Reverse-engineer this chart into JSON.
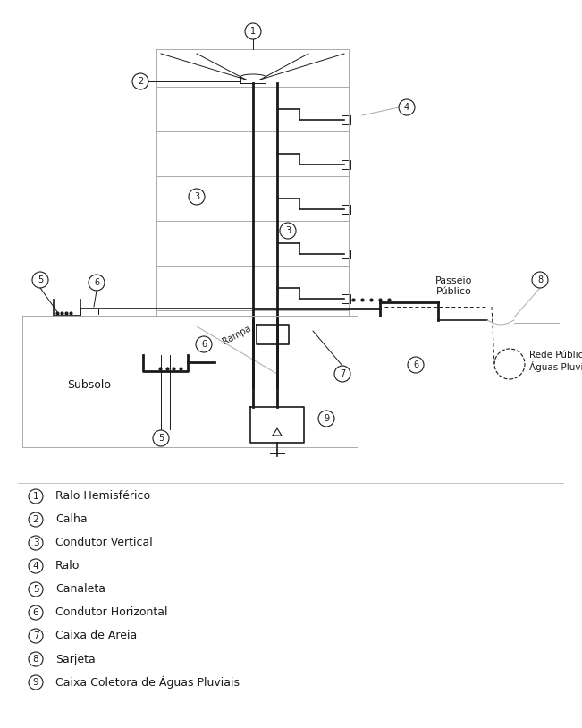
{
  "legend_items": [
    {
      "num": "1",
      "text": "Ralo Hemisférico"
    },
    {
      "num": "2",
      "text": "Calha"
    },
    {
      "num": "3",
      "text": "Condutor Vertical"
    },
    {
      "num": "4",
      "text": "Ralo"
    },
    {
      "num": "5",
      "text": "Canaleta"
    },
    {
      "num": "6",
      "text": "Condutor Horizontal"
    },
    {
      "num": "7",
      "text": "Caixa de Areia"
    },
    {
      "num": "8",
      "text": "Sarjeta"
    },
    {
      "num": "9",
      "text": "Caixa Coletora de Águas Pluviais"
    }
  ],
  "bg_color": "#ffffff",
  "line_color": "#1a1a1a",
  "gray_color": "#aaaaaa",
  "text_color": "#1a1a1a"
}
